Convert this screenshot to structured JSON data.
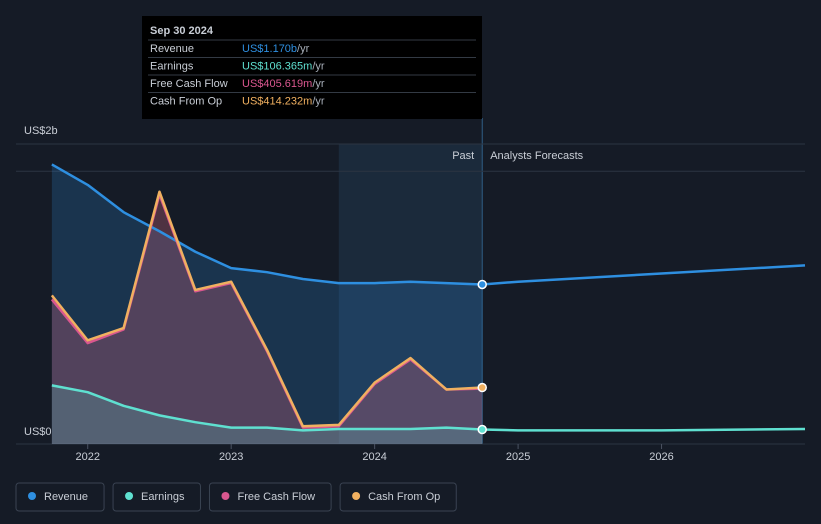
{
  "chart_data": {
    "type": "line",
    "x": [
      2021.75,
      2022.0,
      2022.25,
      2022.5,
      2022.75,
      2023.0,
      2023.25,
      2023.5,
      2023.75,
      2024.0,
      2024.25,
      2024.5,
      2024.75,
      2025.0,
      2026.0,
      2027.0
    ],
    "series": [
      {
        "name": "Revenue",
        "color": "#2e8fe0",
        "values": [
          2.05,
          1.9,
          1.7,
          1.56,
          1.41,
          1.29,
          1.26,
          1.21,
          1.18,
          1.18,
          1.19,
          1.18,
          1.17,
          1.19,
          1.25,
          1.31
        ]
      },
      {
        "name": "Earnings",
        "color": "#5fe0d0",
        "values": [
          0.43,
          0.38,
          0.28,
          0.21,
          0.16,
          0.12,
          0.12,
          0.1,
          0.11,
          0.11,
          0.11,
          0.12,
          0.106,
          0.1,
          0.1,
          0.11
        ]
      },
      {
        "name": "Free Cash Flow",
        "color": "#d9578f",
        "values": [
          1.06,
          0.74,
          0.84,
          1.83,
          1.12,
          1.18,
          0.68,
          0.12,
          0.13,
          0.44,
          0.62,
          0.4,
          0.406,
          null,
          null,
          null
        ]
      },
      {
        "name": "Cash From Op",
        "color": "#f0b060",
        "values": [
          1.09,
          0.76,
          0.85,
          1.85,
          1.13,
          1.19,
          0.69,
          0.13,
          0.14,
          0.45,
          0.63,
          0.4,
          0.414,
          null,
          null,
          null
        ]
      }
    ],
    "xlim": [
      2021.5,
      2027.0
    ],
    "xticks": [
      2022,
      2023,
      2024,
      2025,
      2026
    ],
    "ylim": [
      0,
      2.2
    ],
    "yticks": [
      {
        "value": 0,
        "label": "US$0"
      },
      {
        "value": 2,
        "label": "US$2b"
      }
    ],
    "grid": true,
    "forecast_start": 2024.75,
    "past_label": "Past",
    "forecast_label": "Analysts Forecasts",
    "tooltip": {
      "title": "Sep 30 2024",
      "values": [
        "US$1.170b",
        "US$106.365m",
        "US$405.619m",
        "US$414.232m"
      ],
      "unit": "/yr"
    }
  }
}
